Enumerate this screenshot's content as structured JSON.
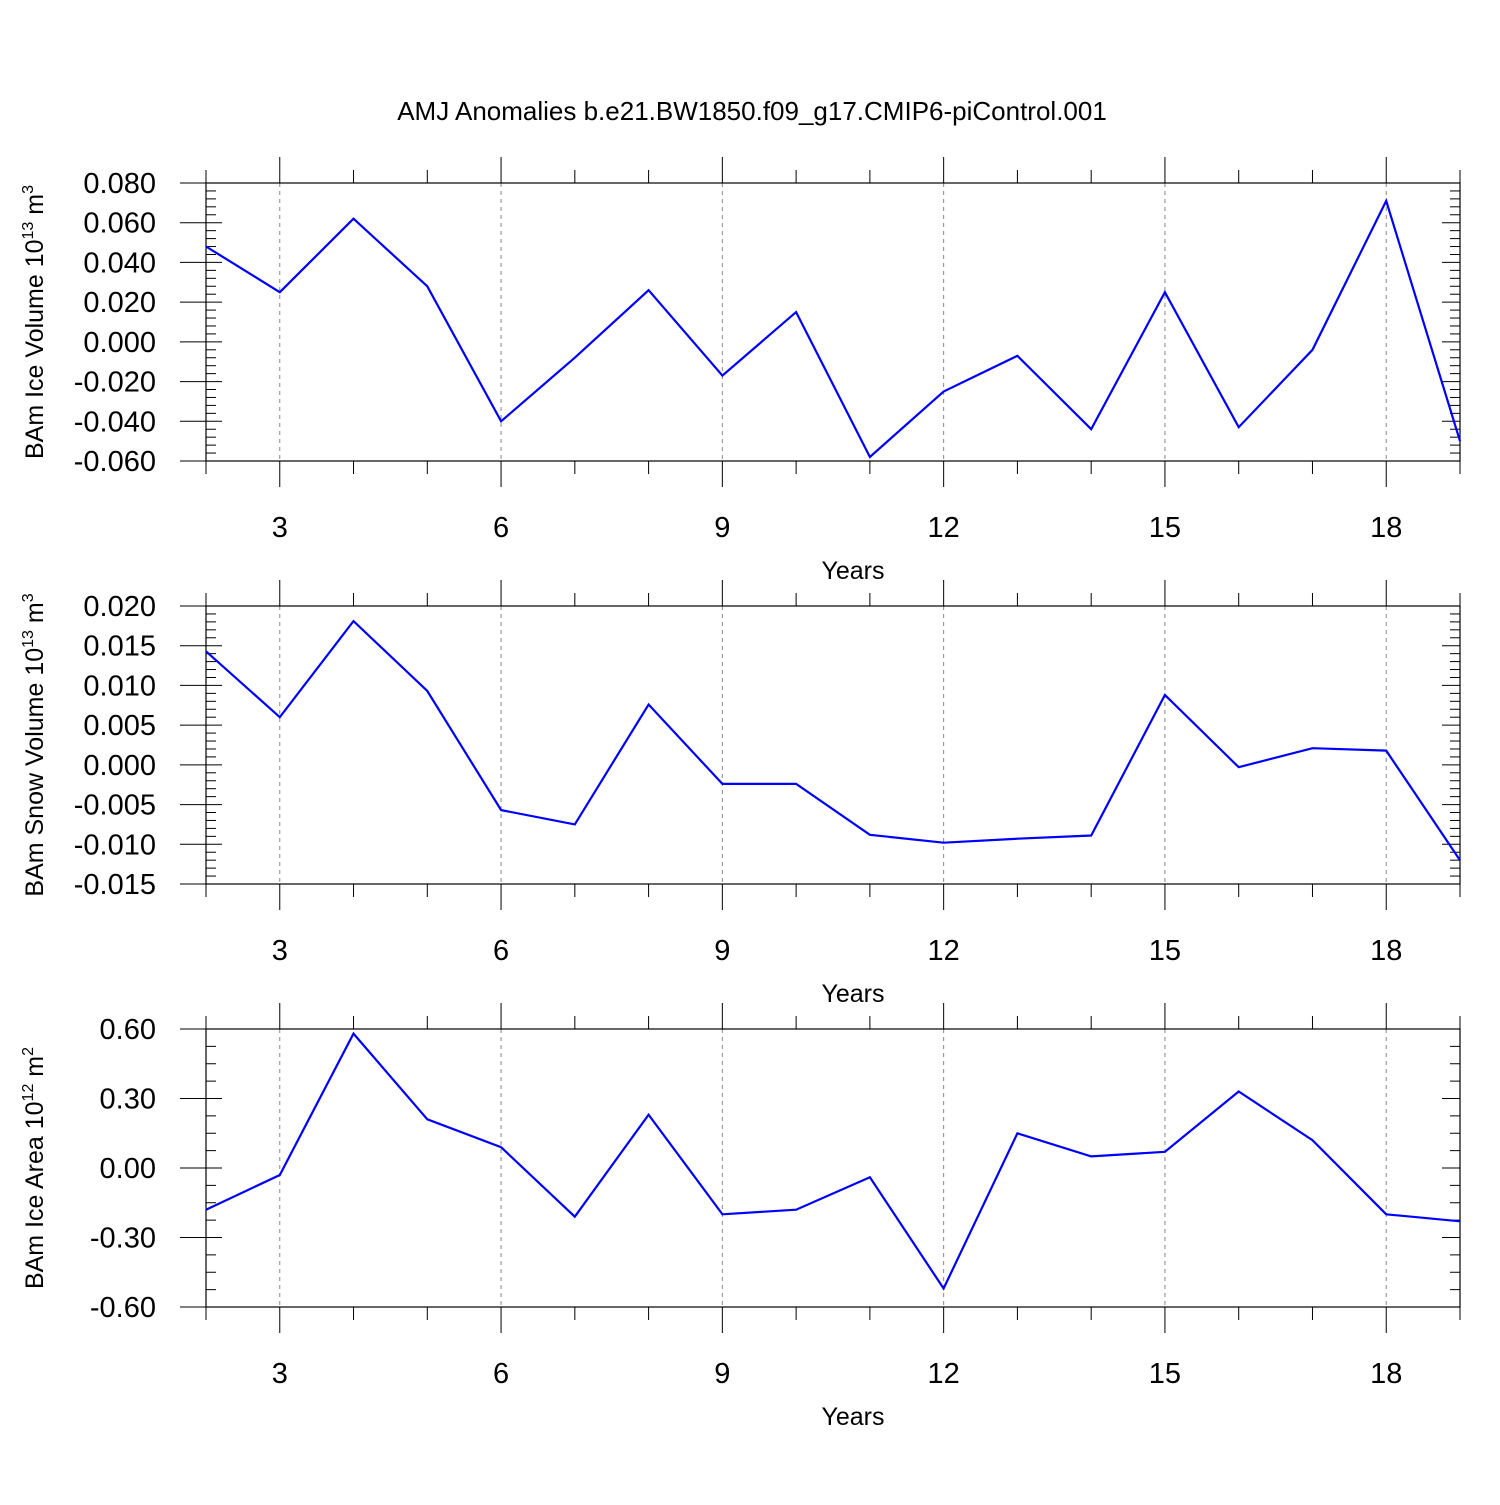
{
  "title": "AMJ Anomalies b.e21.BW1850.f09_g17.CMIP6-piControl.001",
  "colors": {
    "line": "#0000ff",
    "axis": "#000000",
    "grid": "#888888",
    "background": "#ffffff"
  },
  "chart_data": [
    {
      "type": "line",
      "ylabel": {
        "main": "BAm Ice Volume 10",
        "sup": "13",
        "unit": " m",
        "unit_sup": "3"
      },
      "xlabel": "Years",
      "xlim": [
        2,
        19
      ],
      "ylim": [
        -0.06,
        0.08
      ],
      "x_ticks": [
        3,
        6,
        9,
        12,
        15,
        18
      ],
      "x_tick_labels": [
        "3",
        "6",
        "9",
        "12",
        "15",
        "18"
      ],
      "y_ticks": [
        -0.06,
        -0.04,
        -0.02,
        0.0,
        0.02,
        0.04,
        0.06,
        0.08
      ],
      "y_tick_labels": [
        "-0.060",
        "-0.040",
        "-0.020",
        "0.000",
        "0.020",
        "0.040",
        "0.060",
        "0.080"
      ],
      "grid": "vertical-dashed",
      "series": [
        {
          "x": [
            2,
            3,
            4,
            5,
            6,
            7,
            8,
            9,
            10,
            11,
            12,
            13,
            14,
            15,
            16,
            17,
            18,
            19
          ],
          "values": [
            0.048,
            0.025,
            0.062,
            0.028,
            -0.04,
            -0.008,
            0.026,
            -0.017,
            0.015,
            -0.058,
            -0.025,
            -0.007,
            -0.044,
            0.025,
            -0.043,
            -0.004,
            0.071,
            -0.05
          ]
        }
      ]
    },
    {
      "type": "line",
      "ylabel": {
        "main": "BAm Snow Volume 10",
        "sup": "13",
        "unit": " m",
        "unit_sup": "3"
      },
      "xlabel": "Years",
      "xlim": [
        2,
        19
      ],
      "ylim": [
        -0.015,
        0.02
      ],
      "x_ticks": [
        3,
        6,
        9,
        12,
        15,
        18
      ],
      "x_tick_labels": [
        "3",
        "6",
        "9",
        "12",
        "15",
        "18"
      ],
      "y_ticks": [
        -0.015,
        -0.01,
        -0.005,
        0.0,
        0.005,
        0.01,
        0.015,
        0.02
      ],
      "y_tick_labels": [
        "-0.015",
        "-0.010",
        "-0.005",
        "0.000",
        "0.005",
        "0.010",
        "0.015",
        "0.020"
      ],
      "grid": "vertical-dashed",
      "series": [
        {
          "x": [
            2,
            3,
            4,
            5,
            6,
            7,
            8,
            9,
            10,
            11,
            12,
            13,
            14,
            15,
            16,
            17,
            18,
            19
          ],
          "values": [
            0.0143,
            0.006,
            0.0181,
            0.0093,
            -0.0057,
            -0.0075,
            0.0076,
            -0.0024,
            -0.0024,
            -0.0088,
            -0.0098,
            -0.0093,
            -0.0089,
            0.0088,
            -0.0003,
            0.0021,
            0.0018,
            -0.012
          ]
        }
      ]
    },
    {
      "type": "line",
      "ylabel": {
        "main": "BAm Ice Area 10",
        "sup": "12",
        "unit": " m",
        "unit_sup": "2"
      },
      "xlabel": "Years",
      "xlim": [
        2,
        19
      ],
      "ylim": [
        -0.6,
        0.6
      ],
      "x_ticks": [
        3,
        6,
        9,
        12,
        15,
        18
      ],
      "x_tick_labels": [
        "3",
        "6",
        "9",
        "12",
        "15",
        "18"
      ],
      "y_ticks": [
        -0.6,
        -0.3,
        0.0,
        0.3,
        0.6
      ],
      "y_tick_labels": [
        "-0.60",
        "-0.30",
        "0.00",
        "0.30",
        "0.60"
      ],
      "grid": "vertical-dashed",
      "series": [
        {
          "x": [
            2,
            3,
            4,
            5,
            6,
            7,
            8,
            9,
            10,
            11,
            12,
            13,
            14,
            15,
            16,
            17,
            18,
            19
          ],
          "values": [
            -0.18,
            -0.03,
            0.58,
            0.21,
            0.09,
            -0.21,
            0.23,
            -0.2,
            -0.18,
            -0.04,
            -0.52,
            0.15,
            0.05,
            0.07,
            0.33,
            0.12,
            -0.2,
            -0.23
          ]
        }
      ]
    }
  ]
}
